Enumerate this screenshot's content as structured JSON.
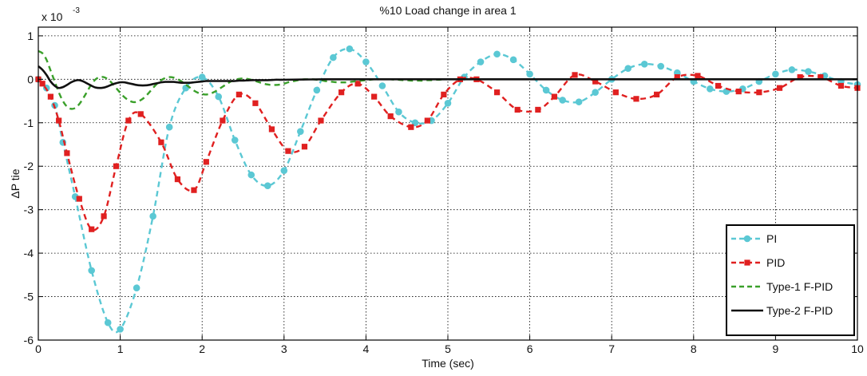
{
  "chart_data": {
    "type": "line",
    "title": "%10 Load change in area 1",
    "xlabel": "Time (sec)",
    "ylabel": "ΔP tie",
    "exponent_label": "x 10",
    "exponent_power": "-3",
    "xlim": [
      0,
      10
    ],
    "ylim": [
      -6,
      1.2
    ],
    "xticks": [
      0,
      1,
      2,
      3,
      4,
      5,
      6,
      7,
      8,
      9,
      10
    ],
    "yticks": [
      -6,
      -5,
      -4,
      -3,
      -2,
      -1,
      0,
      1
    ],
    "grid": true,
    "legend_position": "bottom-right",
    "series": [
      {
        "name": "PI",
        "color": "#5bc8d4",
        "marker": "circle",
        "dash": "dashed",
        "x": [
          0.0,
          0.1,
          0.2,
          0.3,
          0.45,
          0.65,
          0.85,
          1.0,
          1.2,
          1.4,
          1.6,
          1.8,
          2.0,
          2.2,
          2.4,
          2.6,
          2.8,
          3.0,
          3.2,
          3.4,
          3.6,
          3.8,
          4.0,
          4.2,
          4.4,
          4.6,
          4.8,
          5.0,
          5.2,
          5.4,
          5.6,
          5.8,
          6.0,
          6.2,
          6.4,
          6.6,
          6.8,
          7.0,
          7.2,
          7.4,
          7.6,
          7.8,
          8.0,
          8.2,
          8.4,
          8.6,
          8.8,
          9.0,
          9.2,
          9.4,
          9.6,
          9.8,
          10.0
        ],
        "y": [
          0.0,
          -0.2,
          -0.6,
          -1.45,
          -2.7,
          -4.4,
          -5.6,
          -5.75,
          -4.8,
          -3.15,
          -1.1,
          -0.2,
          0.05,
          -0.4,
          -1.4,
          -2.2,
          -2.45,
          -2.1,
          -1.2,
          -0.25,
          0.5,
          0.7,
          0.4,
          -0.15,
          -0.75,
          -1.0,
          -0.95,
          -0.55,
          0.05,
          0.4,
          0.58,
          0.45,
          0.12,
          -0.25,
          -0.48,
          -0.52,
          -0.3,
          0.0,
          0.25,
          0.35,
          0.3,
          0.15,
          -0.05,
          -0.22,
          -0.28,
          -0.22,
          -0.05,
          0.12,
          0.22,
          0.18,
          0.08,
          -0.05,
          -0.12
        ]
      },
      {
        "name": "PID",
        "color": "#e02020",
        "marker": "square",
        "dash": "dashed",
        "x": [
          0.0,
          0.05,
          0.15,
          0.25,
          0.35,
          0.5,
          0.65,
          0.8,
          0.95,
          1.1,
          1.25,
          1.5,
          1.7,
          1.9,
          2.05,
          2.25,
          2.45,
          2.65,
          2.85,
          3.05,
          3.25,
          3.45,
          3.7,
          3.9,
          4.1,
          4.3,
          4.55,
          4.75,
          4.95,
          5.15,
          5.35,
          5.6,
          5.85,
          6.1,
          6.3,
          6.55,
          6.8,
          7.05,
          7.3,
          7.55,
          7.8,
          8.05,
          8.3,
          8.55,
          8.8,
          9.05,
          9.3,
          9.55,
          9.8,
          10.0
        ],
        "y": [
          0.0,
          -0.1,
          -0.4,
          -0.95,
          -1.7,
          -2.75,
          -3.45,
          -3.15,
          -2.0,
          -0.95,
          -0.8,
          -1.45,
          -2.3,
          -2.55,
          -1.9,
          -0.95,
          -0.35,
          -0.55,
          -1.15,
          -1.65,
          -1.55,
          -0.95,
          -0.3,
          -0.1,
          -0.4,
          -0.85,
          -1.1,
          -0.95,
          -0.35,
          0.0,
          0.0,
          -0.3,
          -0.7,
          -0.7,
          -0.4,
          0.1,
          -0.05,
          -0.3,
          -0.45,
          -0.35,
          0.05,
          0.08,
          -0.15,
          -0.28,
          -0.3,
          -0.2,
          0.05,
          0.05,
          -0.15,
          -0.2
        ]
      },
      {
        "name": "Type-1 F-PID",
        "color": "#3aa02a",
        "marker": "none",
        "dash": "dashed",
        "x": [
          0.0,
          0.05,
          0.1,
          0.15,
          0.2,
          0.25,
          0.3,
          0.35,
          0.4,
          0.45,
          0.5,
          0.55,
          0.6,
          0.65,
          0.7,
          0.75,
          0.8,
          0.85,
          0.9,
          0.95,
          1.0,
          1.05,
          1.1,
          1.15,
          1.2,
          1.25,
          1.3,
          1.35,
          1.4,
          1.45,
          1.5,
          1.55,
          1.6,
          1.65,
          1.7,
          1.75,
          1.8,
          1.85,
          1.9,
          1.95,
          2.0,
          2.05,
          2.1,
          2.15,
          2.2,
          2.25,
          2.3,
          2.35,
          2.4,
          2.45,
          2.5,
          2.55,
          2.6,
          2.65,
          2.7,
          2.75,
          2.8,
          2.85,
          2.9,
          2.95,
          3.0,
          3.05,
          3.1,
          3.15,
          3.2,
          3.25,
          3.3,
          3.35,
          3.4,
          3.45,
          3.5,
          3.55,
          3.6,
          3.65,
          3.7,
          3.75,
          3.8,
          3.85,
          3.9,
          3.95,
          4.0,
          4.05,
          4.1,
          4.15,
          4.2,
          4.25,
          4.3,
          4.35,
          4.4,
          4.45,
          4.5,
          4.55,
          4.6,
          4.65,
          4.7,
          4.75,
          4.8,
          4.85,
          4.9,
          4.95,
          5.0,
          5.5,
          6.0,
          6.5,
          7.0,
          7.5,
          8.0,
          8.5,
          9.0,
          9.5,
          10.0
        ],
        "y": [
          0.65,
          0.6,
          0.45,
          0.2,
          -0.05,
          -0.3,
          -0.5,
          -0.63,
          -0.68,
          -0.66,
          -0.57,
          -0.43,
          -0.27,
          -0.11,
          0.0,
          0.05,
          0.05,
          0.0,
          -0.09,
          -0.2,
          -0.31,
          -0.41,
          -0.48,
          -0.52,
          -0.52,
          -0.48,
          -0.41,
          -0.31,
          -0.2,
          -0.1,
          -0.02,
          0.03,
          0.05,
          0.04,
          0.0,
          -0.05,
          -0.12,
          -0.19,
          -0.26,
          -0.31,
          -0.34,
          -0.35,
          -0.33,
          -0.29,
          -0.23,
          -0.17,
          -0.11,
          -0.05,
          -0.01,
          0.01,
          0.02,
          0.01,
          -0.01,
          -0.04,
          -0.07,
          -0.1,
          -0.12,
          -0.13,
          -0.13,
          -0.12,
          -0.1,
          -0.07,
          -0.05,
          -0.03,
          -0.01,
          0.0,
          0.0,
          0.0,
          -0.01,
          -0.02,
          -0.04,
          -0.05,
          -0.06,
          -0.07,
          -0.07,
          -0.07,
          -0.06,
          -0.05,
          -0.04,
          -0.03,
          -0.02,
          -0.01,
          0.0,
          0.0,
          0.0,
          0.0,
          0.0,
          -0.01,
          -0.01,
          -0.02,
          -0.02,
          -0.03,
          -0.03,
          -0.03,
          -0.03,
          -0.02,
          -0.02,
          -0.01,
          -0.01,
          0.0,
          0.0,
          0.0,
          0.0,
          0.0,
          0.0,
          0.0,
          0.0,
          0.0,
          0.0,
          0.0,
          0.0
        ]
      },
      {
        "name": "Type-2 F-PID",
        "color": "#111111",
        "marker": "none",
        "dash": "solid",
        "x": [
          0.0,
          0.05,
          0.1,
          0.15,
          0.2,
          0.25,
          0.3,
          0.35,
          0.4,
          0.45,
          0.5,
          0.55,
          0.6,
          0.65,
          0.7,
          0.75,
          0.8,
          0.85,
          0.9,
          0.95,
          1.0,
          1.05,
          1.1,
          1.15,
          1.2,
          1.25,
          1.3,
          1.35,
          1.4,
          1.45,
          1.5,
          1.55,
          1.6,
          1.65,
          1.7,
          1.75,
          1.8,
          1.85,
          1.9,
          1.95,
          2.0,
          2.05,
          2.1,
          2.15,
          2.2,
          2.25,
          2.3,
          2.35,
          2.4,
          2.45,
          2.5,
          2.6,
          2.7,
          2.8,
          2.9,
          3.0,
          3.5,
          4.0,
          5.0,
          6.0,
          7.0,
          8.0,
          9.0,
          10.0
        ],
        "y": [
          0.3,
          0.22,
          0.1,
          -0.05,
          -0.15,
          -0.2,
          -0.18,
          -0.13,
          -0.07,
          -0.03,
          -0.02,
          -0.05,
          -0.1,
          -0.15,
          -0.19,
          -0.2,
          -0.19,
          -0.16,
          -0.12,
          -0.09,
          -0.07,
          -0.07,
          -0.09,
          -0.11,
          -0.13,
          -0.14,
          -0.14,
          -0.13,
          -0.11,
          -0.09,
          -0.07,
          -0.06,
          -0.06,
          -0.06,
          -0.07,
          -0.08,
          -0.08,
          -0.08,
          -0.07,
          -0.06,
          -0.05,
          -0.04,
          -0.04,
          -0.04,
          -0.04,
          -0.04,
          -0.04,
          -0.04,
          -0.04,
          -0.03,
          -0.03,
          -0.02,
          -0.02,
          -0.02,
          -0.01,
          -0.01,
          0.0,
          0.0,
          0.0,
          0.0,
          0.0,
          0.0,
          0.0,
          0.0
        ]
      }
    ]
  }
}
